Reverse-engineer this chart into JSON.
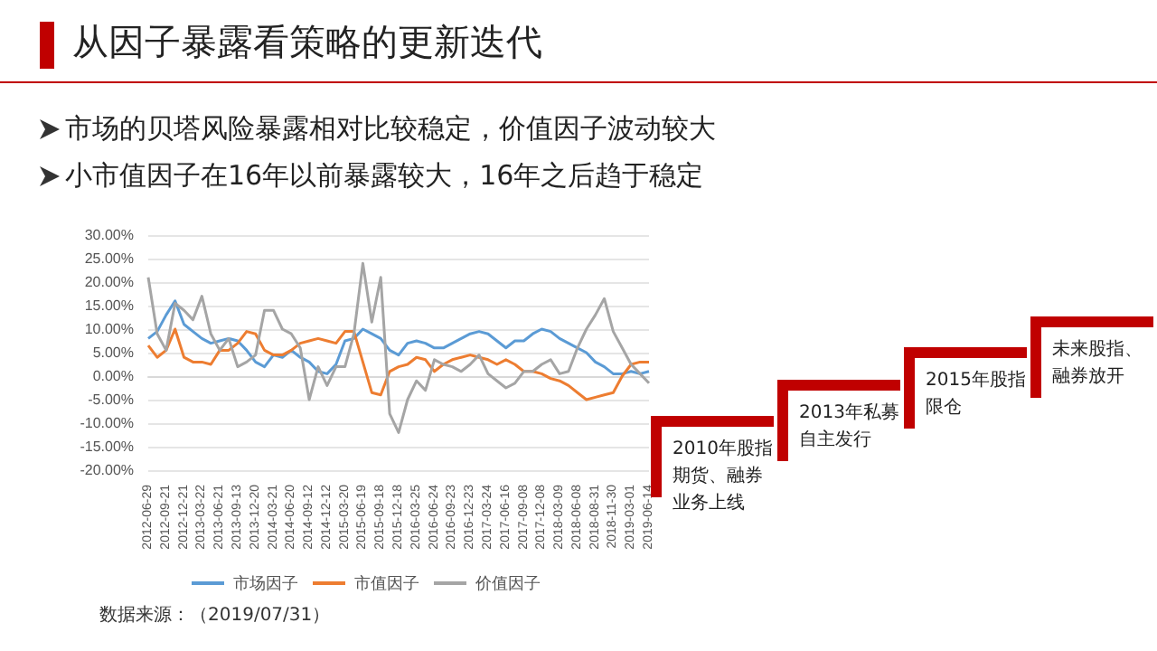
{
  "chart_data": {
    "type": "line",
    "title": "从因子暴露看策略的更新迭代",
    "annotations": [
      "市场的贝塔风险暴露相对比较稳定，价值因子波动较大",
      "小市值因子在16年以前暴露较大，16年之后趋于稳定",
      "2010年股指期货、融券业务上线",
      "2013年私募自主发行",
      "2015年股指限仓",
      "未来股指、融券放开",
      "数据来源：（2019/07/31）"
    ],
    "categories": [
      "2012-06-29",
      null,
      "2012-09-21",
      null,
      "2012-12-21",
      null,
      "2013-03-22",
      null,
      "2013-06-21",
      null,
      "2013-09-13",
      null,
      "2013-12-20",
      null,
      "2014-03-21",
      null,
      "2014-06-20",
      null,
      "2014-09-12",
      null,
      "2014-12-12",
      null,
      "2015-03-20",
      null,
      "2015-06-19",
      null,
      "2015-09-18",
      null,
      "2015-12-18",
      null,
      "2016-03-25",
      null,
      "2016-06-24",
      null,
      "2016-09-23",
      null,
      "2016-12-23",
      null,
      "2017-03-24",
      null,
      "2017-06-16",
      null,
      "2017-09-08",
      null,
      "2017-12-08",
      null,
      "2018-03-09",
      null,
      "2018-06-08",
      null,
      "2018-08-31",
      null,
      "2018-11-30",
      null,
      "2019-03-01",
      null,
      "2019-06-14"
    ],
    "series": [
      {
        "name": "市场因子",
        "color": "#5b9bd5",
        "values": [
          8,
          9.5,
          13,
          16,
          11,
          9.5,
          8,
          7,
          7.5,
          8,
          7.5,
          5.5,
          3,
          2,
          4.5,
          4,
          5.5,
          4,
          3,
          1,
          0.5,
          2.5,
          7.5,
          8,
          10,
          9,
          8,
          5.5,
          4.5,
          7,
          7.5,
          7,
          6,
          6,
          7,
          8,
          9,
          9.5,
          9,
          7.5,
          6,
          7.5,
          7.5,
          9,
          10,
          9.5,
          8,
          7,
          6,
          5,
          3,
          2,
          0.5,
          0.5,
          1,
          0.5,
          1
        ]
      },
      {
        "name": "市值因子",
        "color": "#ed7d31",
        "values": [
          6.5,
          4,
          5.5,
          10,
          4,
          3,
          3,
          2.5,
          5.5,
          5.5,
          7,
          9.5,
          9,
          5.5,
          4.5,
          4.5,
          5.5,
          7,
          7.5,
          8,
          7.5,
          7,
          9.5,
          9.5,
          3,
          -3.5,
          -4,
          1,
          2,
          2.5,
          4,
          3.5,
          1,
          2.5,
          3.5,
          4,
          4.5,
          4,
          3.5,
          2.5,
          3.5,
          2.5,
          1,
          1,
          0.5,
          -0.5,
          -1,
          -2,
          -3.5,
          -5,
          -4.5,
          -4,
          -3.5,
          0,
          2.5,
          3,
          3
        ]
      },
      {
        "name": "价值因子",
        "color": "#a5a5a5",
        "values": [
          21,
          9,
          5.5,
          15.5,
          14,
          12,
          17,
          9,
          5.5,
          8,
          2,
          3,
          4.5,
          14,
          14,
          10,
          9,
          6,
          -5,
          2,
          -2,
          2,
          2,
          9,
          24,
          11.5,
          21,
          -8,
          -12,
          -5,
          -1,
          -3,
          3.5,
          2.5,
          2,
          1,
          2.5,
          4.5,
          0.5,
          -1,
          -2.5,
          -1.5,
          1,
          1,
          2.5,
          3.5,
          0.5,
          1,
          6,
          10,
          13,
          16.5,
          9.5,
          6,
          2.5,
          0.5,
          -1.5
        ]
      }
    ],
    "ylim": [
      -20,
      30
    ],
    "yticks": [
      {
        "value": -20,
        "label": "-20.00%"
      },
      {
        "value": -15,
        "label": "-15.00%"
      },
      {
        "value": -10,
        "label": "-10.00%"
      },
      {
        "value": -5,
        "label": "-5.00%"
      },
      {
        "value": 0,
        "label": "0.00%"
      },
      {
        "value": 5,
        "label": "5.00%"
      },
      {
        "value": 10,
        "label": "10.00%"
      },
      {
        "value": 15,
        "label": "15.00%"
      },
      {
        "value": 20,
        "label": "20.00%"
      },
      {
        "value": 25,
        "label": "25.00%"
      },
      {
        "value": 30,
        "label": "30.00%"
      }
    ],
    "grid": "y",
    "legend": "bottom",
    "marker": "none",
    "line_style": "solid"
  }
}
